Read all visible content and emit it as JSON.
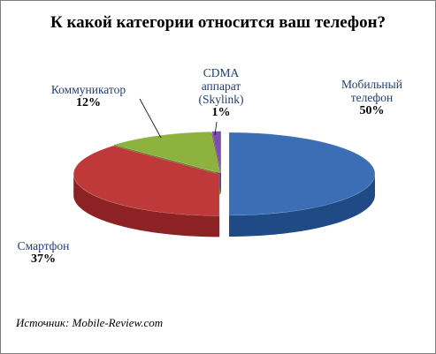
{
  "chart_data": {
    "type": "pie",
    "title": "К какой категории относится ваш телефон?",
    "slices": [
      {
        "key": "mobile",
        "label": "Мобильный телефон",
        "label_lines": [
          "Мобильный",
          "телефон"
        ],
        "percent": "50%",
        "value": 50,
        "color": "#3b6eb5",
        "side": "#1f4a86"
      },
      {
        "key": "smart",
        "label": "Смартфон",
        "label_lines": [
          "Смартфон"
        ],
        "percent": "37%",
        "value": 37,
        "color": "#c0393a",
        "side": "#8c2223"
      },
      {
        "key": "comm",
        "label": "Коммуникатор",
        "label_lines": [
          "Коммуникатор"
        ],
        "percent": "12%",
        "value": 12,
        "color": "#8db33e",
        "side": "#5f7c26"
      },
      {
        "key": "cdma",
        "label": "CDMA аппарат (Skylink)",
        "label_lines": [
          "CDMA",
          "аппарат",
          "(Skylink)"
        ],
        "percent": "1%",
        "value": 1,
        "color": "#7e4fa6",
        "side": "#553272"
      }
    ],
    "legend": "none"
  },
  "source": "Источник: Mobile-Review.com"
}
